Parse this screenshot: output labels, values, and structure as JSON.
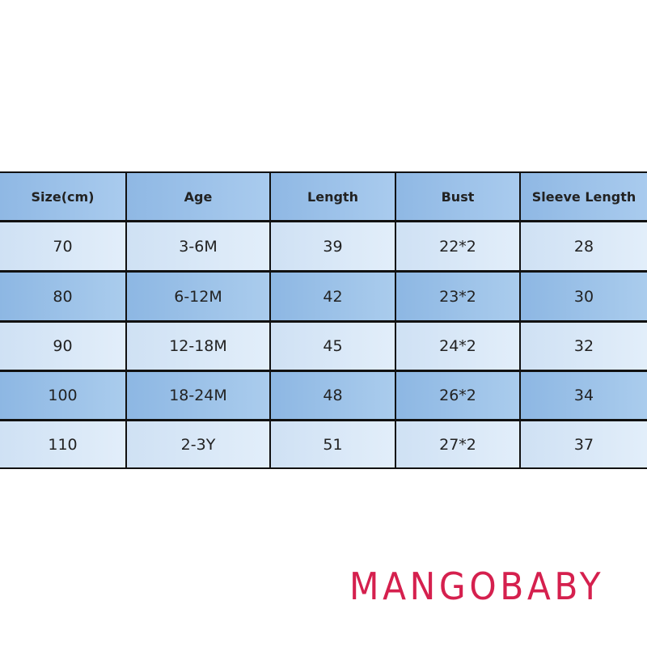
{
  "table": {
    "header": [
      "Size(cm)",
      "Age",
      "Length",
      "Bust",
      "Sleeve Length"
    ],
    "rows": [
      [
        "70",
        "3-6M",
        "39",
        "22*2",
        "28"
      ],
      [
        "80",
        "6-12M",
        "42",
        "23*2",
        "30"
      ],
      [
        "90",
        "12-18M",
        "45",
        "24*2",
        "32"
      ],
      [
        "100",
        "18-24M",
        "48",
        "26*2",
        "34"
      ],
      [
        "110",
        "2-3Y",
        "51",
        "27*2",
        "37"
      ]
    ]
  },
  "watermark": "MANGOBABY"
}
